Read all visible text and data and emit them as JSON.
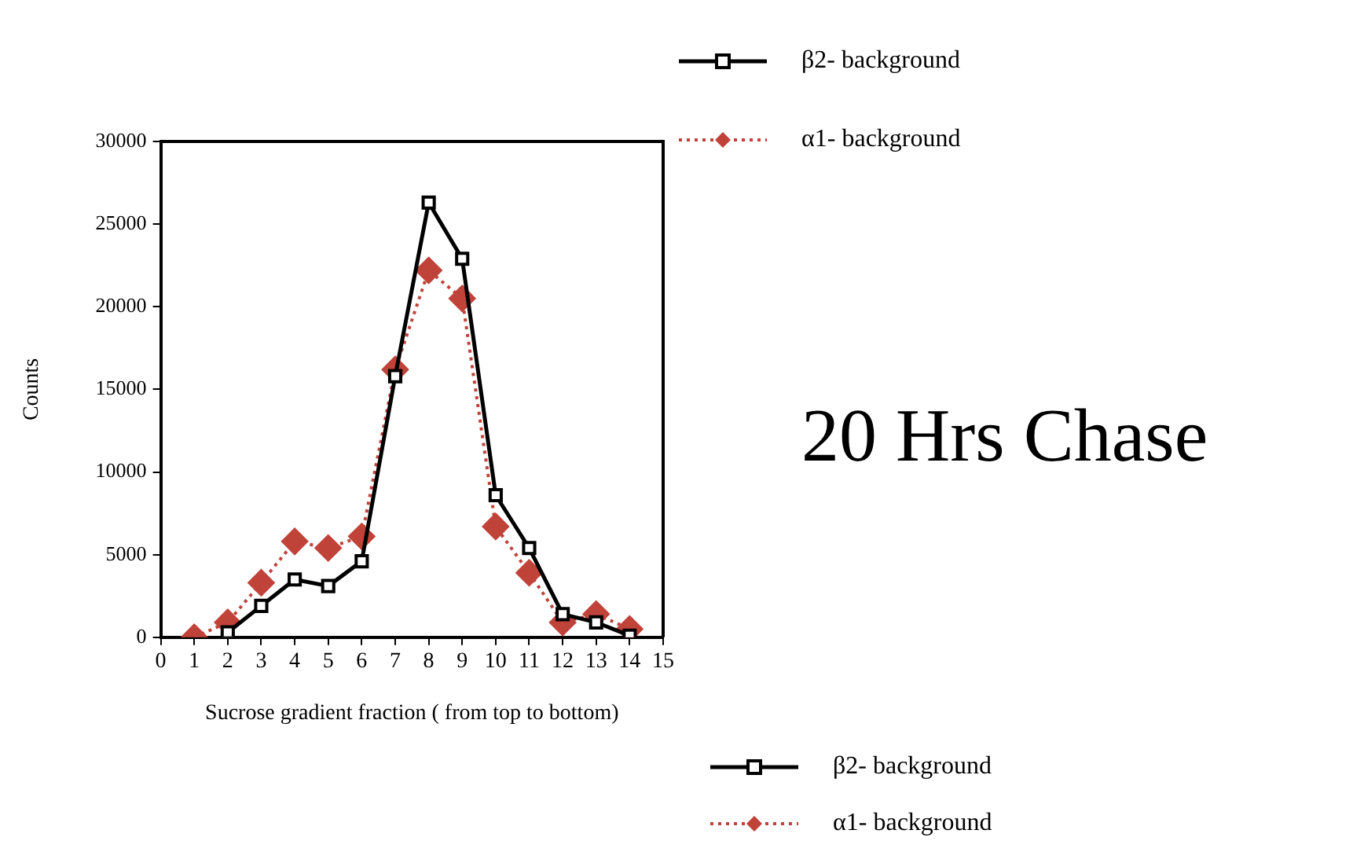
{
  "chart_data": {
    "type": "line",
    "title": "20 Hrs Chase",
    "xlabel": "Sucrose gradient fraction ( from top to bottom)",
    "ylabel": "Counts",
    "xlim": [
      0,
      15
    ],
    "xticks": [
      0,
      1,
      2,
      3,
      4,
      5,
      6,
      7,
      8,
      9,
      10,
      11,
      12,
      13,
      14,
      15
    ],
    "ylim": [
      0,
      30000
    ],
    "yticks": [
      0,
      5000,
      10000,
      15000,
      20000,
      25000,
      30000
    ],
    "grid": false,
    "legend": "top right",
    "series": [
      {
        "name": "β2- background",
        "color": "#000000",
        "marker": "square",
        "line_style": "solid",
        "x": [
          2,
          3,
          4,
          5,
          6,
          7,
          8,
          9,
          10,
          11,
          12,
          13,
          14
        ],
        "values": [
          300,
          1900,
          3500,
          3100,
          4600,
          15800,
          26300,
          22900,
          8600,
          5400,
          1400,
          900,
          100
        ]
      },
      {
        "name": "α1- background",
        "color": "#c0433a",
        "marker": "diamond",
        "line_style": "dotted",
        "x": [
          1,
          2,
          3,
          4,
          5,
          6,
          7,
          8,
          9,
          10,
          11,
          12,
          13,
          14
        ],
        "values": [
          0,
          900,
          3300,
          5800,
          5400,
          6100,
          16200,
          22200,
          20500,
          6700,
          3900,
          900,
          1400,
          500
        ]
      }
    ]
  }
}
